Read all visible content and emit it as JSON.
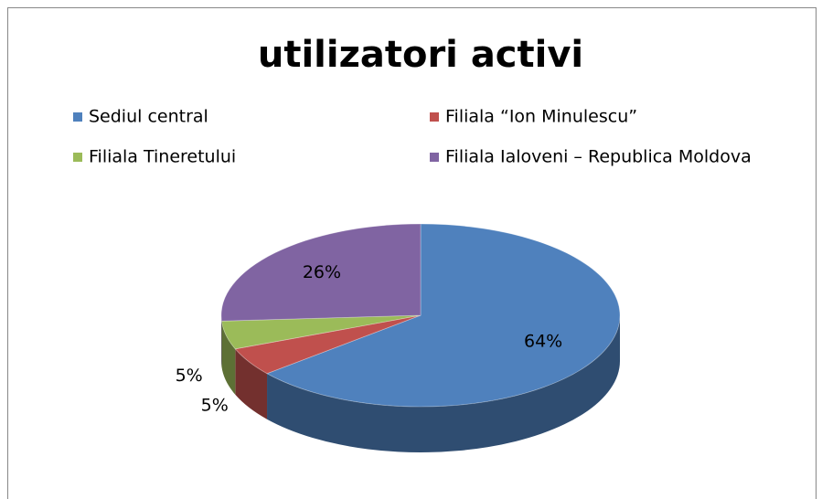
{
  "chart_data": {
    "type": "pie",
    "title": "utilizatori activi",
    "categories": [
      "Sediul central",
      "Filiala “Ion Minulescu”",
      "Filiala Tineretului",
      "Filiala Ialoveni – Republica Moldova"
    ],
    "values": [
      64,
      5,
      5,
      26
    ],
    "value_labels": [
      "64%",
      "5%",
      "5%",
      "26%"
    ],
    "colors": [
      "#4f81bd",
      "#c0504d",
      "#9bbb59",
      "#8064a2"
    ],
    "legend": "top"
  }
}
